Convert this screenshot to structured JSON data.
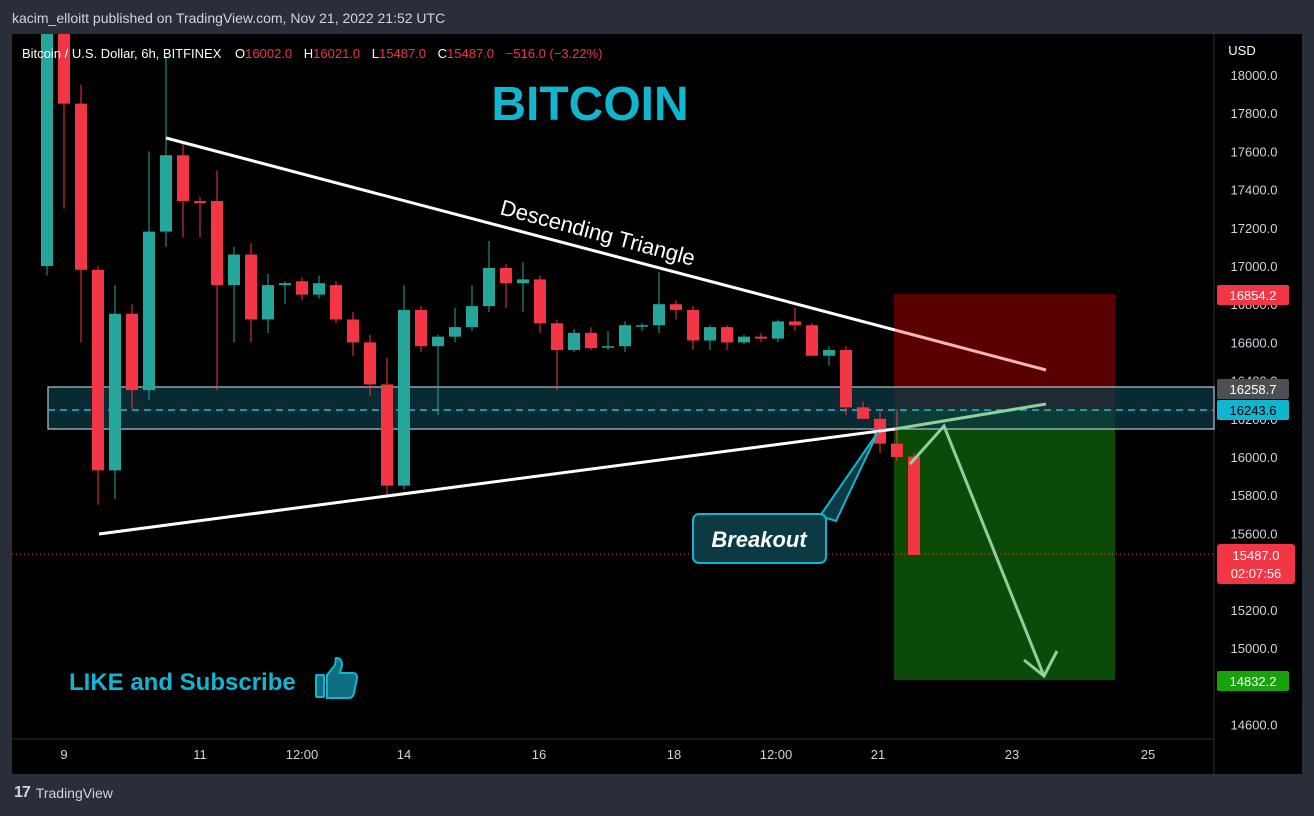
{
  "header": {
    "published_by": "kacim_elloitt published on TradingView.com, Nov 21, 2022 21:52 UTC"
  },
  "legend": {
    "symbol": "Bitcoin / U.S. Dollar, 6h, BITFINEX",
    "o_label": "O",
    "o_value": "16002.0",
    "h_label": "H",
    "h_value": "16021.0",
    "l_label": "L",
    "l_value": "15487.0",
    "c_label": "C",
    "c_value": "15487.0",
    "change": "−516.0 (−3.22%)"
  },
  "annotations": {
    "title": "BITCOIN",
    "pattern": "Descending Triangle",
    "breakout": "Breakout",
    "cta": "LIKE and Subscribe",
    "thumb_icon": "thumbs-up-icon"
  },
  "price_badges": {
    "stop": "16854.2",
    "zone_top": "16258.7",
    "entry": "16243.6",
    "last": "15487.0",
    "countdown": "02:07:56",
    "target": "14832.2"
  },
  "colors": {
    "up": "#26a69a",
    "down": "#f23645",
    "accent": "#10b5d0",
    "stop_zone": "#5a0000",
    "target_zone": "#0c4a07"
  },
  "footer": {
    "brand": "TradingView",
    "logo_icon": "tradingview-logo-icon"
  },
  "chart_data": {
    "type": "candlestick",
    "title": "Bitcoin / U.S. Dollar, 6h, BITFINEX",
    "currency": "USD",
    "ylim": [
      14480,
      18200
    ],
    "yticks": [
      18000,
      17800,
      17600,
      17400,
      17200,
      17000,
      16800,
      16600,
      16400,
      16200,
      16000,
      15800,
      15600,
      15400,
      15200,
      15000,
      14800,
      14600
    ],
    "xticks": [
      "9",
      "11",
      "12:00",
      "14",
      "16",
      "18",
      "12:00",
      "21",
      "23",
      "25"
    ],
    "grid": false,
    "candles": [
      {
        "o": 17000,
        "h": 18500,
        "l": 16950,
        "c": 18450
      },
      {
        "o": 18450,
        "h": 18500,
        "l": 17300,
        "c": 17850
      },
      {
        "o": 17850,
        "h": 17950,
        "l": 16600,
        "c": 16980
      },
      {
        "o": 16980,
        "h": 17000,
        "l": 15750,
        "c": 15930
      },
      {
        "o": 15930,
        "h": 16900,
        "l": 15780,
        "c": 16750
      },
      {
        "o": 16750,
        "h": 16800,
        "l": 16250,
        "c": 16350
      },
      {
        "o": 16350,
        "h": 17600,
        "l": 16300,
        "c": 17180
      },
      {
        "o": 17180,
        "h": 18100,
        "l": 17100,
        "c": 17580
      },
      {
        "o": 17580,
        "h": 17640,
        "l": 17150,
        "c": 17340
      },
      {
        "o": 17340,
        "h": 17360,
        "l": 17150,
        "c": 17330
      },
      {
        "o": 17340,
        "h": 17500,
        "l": 16350,
        "c": 16900
      },
      {
        "o": 16900,
        "h": 17100,
        "l": 16600,
        "c": 17060
      },
      {
        "o": 17060,
        "h": 17120,
        "l": 16600,
        "c": 16720
      },
      {
        "o": 16720,
        "h": 16960,
        "l": 16650,
        "c": 16900
      },
      {
        "o": 16900,
        "h": 16920,
        "l": 16800,
        "c": 16910
      },
      {
        "o": 16920,
        "h": 16940,
        "l": 16820,
        "c": 16850
      },
      {
        "o": 16850,
        "h": 16950,
        "l": 16830,
        "c": 16910
      },
      {
        "o": 16900,
        "h": 16920,
        "l": 16700,
        "c": 16720
      },
      {
        "o": 16720,
        "h": 16760,
        "l": 16530,
        "c": 16600
      },
      {
        "o": 16600,
        "h": 16640,
        "l": 16320,
        "c": 16380
      },
      {
        "o": 16380,
        "h": 16520,
        "l": 15800,
        "c": 15850
      },
      {
        "o": 15850,
        "h": 16900,
        "l": 15830,
        "c": 16770
      },
      {
        "o": 16770,
        "h": 16790,
        "l": 16550,
        "c": 16580
      },
      {
        "o": 16580,
        "h": 16640,
        "l": 16220,
        "c": 16630
      },
      {
        "o": 16630,
        "h": 16780,
        "l": 16600,
        "c": 16680
      },
      {
        "o": 16680,
        "h": 16900,
        "l": 16660,
        "c": 16790
      },
      {
        "o": 16790,
        "h": 17130,
        "l": 16760,
        "c": 16990
      },
      {
        "o": 16990,
        "h": 17010,
        "l": 16780,
        "c": 16910
      },
      {
        "o": 16910,
        "h": 17020,
        "l": 16760,
        "c": 16930
      },
      {
        "o": 16930,
        "h": 16950,
        "l": 16650,
        "c": 16700
      },
      {
        "o": 16700,
        "h": 16720,
        "l": 16350,
        "c": 16560
      },
      {
        "o": 16560,
        "h": 16670,
        "l": 16550,
        "c": 16650
      },
      {
        "o": 16650,
        "h": 16680,
        "l": 16560,
        "c": 16570
      },
      {
        "o": 16580,
        "h": 16660,
        "l": 16560,
        "c": 16580
      },
      {
        "o": 16580,
        "h": 16710,
        "l": 16550,
        "c": 16690
      },
      {
        "o": 16690,
        "h": 16700,
        "l": 16660,
        "c": 16690
      },
      {
        "o": 16690,
        "h": 16970,
        "l": 16650,
        "c": 16800
      },
      {
        "o": 16800,
        "h": 16820,
        "l": 16720,
        "c": 16770
      },
      {
        "o": 16770,
        "h": 16790,
        "l": 16560,
        "c": 16610
      },
      {
        "o": 16610,
        "h": 16690,
        "l": 16560,
        "c": 16680
      },
      {
        "o": 16680,
        "h": 16690,
        "l": 16560,
        "c": 16600
      },
      {
        "o": 16600,
        "h": 16640,
        "l": 16590,
        "c": 16630
      },
      {
        "o": 16630,
        "h": 16650,
        "l": 16600,
        "c": 16620
      },
      {
        "o": 16620,
        "h": 16720,
        "l": 16600,
        "c": 16710
      },
      {
        "o": 16710,
        "h": 16780,
        "l": 16660,
        "c": 16690
      },
      {
        "o": 16690,
        "h": 16700,
        "l": 16540,
        "c": 16530
      },
      {
        "o": 16530,
        "h": 16580,
        "l": 16480,
        "c": 16560
      },
      {
        "o": 16560,
        "h": 16580,
        "l": 16220,
        "c": 16260
      },
      {
        "o": 16260,
        "h": 16290,
        "l": 16200,
        "c": 16200
      },
      {
        "o": 16200,
        "h": 16240,
        "l": 16020,
        "c": 16070
      },
      {
        "o": 16070,
        "h": 16250,
        "l": 15980,
        "c": 16000
      },
      {
        "o": 16002,
        "h": 16021,
        "l": 15487,
        "c": 15487
      }
    ],
    "annotations": [
      "Descending Triangle",
      "Breakout",
      "BITCOIN",
      "LIKE and Subscribe"
    ]
  }
}
